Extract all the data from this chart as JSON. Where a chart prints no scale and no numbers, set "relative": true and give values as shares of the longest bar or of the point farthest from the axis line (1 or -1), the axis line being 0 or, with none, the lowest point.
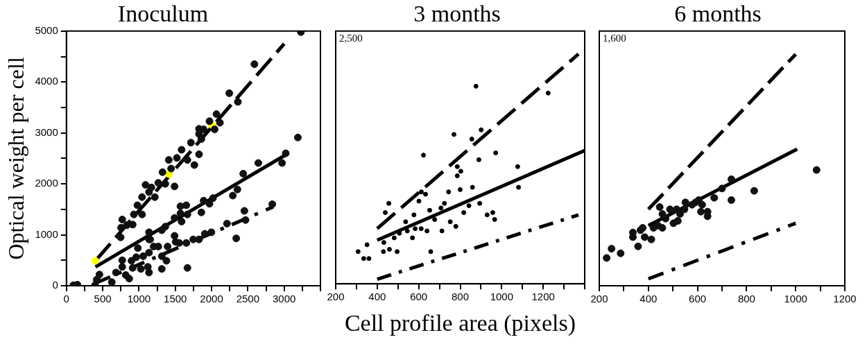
{
  "chart_data": [
    {
      "type": "scatter",
      "title": "Inoculum",
      "ylabel": "Optical weight per cell",
      "xlim": [
        0,
        3500
      ],
      "xticks": [
        0,
        {
          "value": 250,
          "label": null
        },
        500,
        {
          "value": 750,
          "label": null
        },
        1000,
        {
          "value": 1250,
          "label": null
        },
        1500,
        {
          "value": 1750,
          "label": null
        },
        2000,
        {
          "value": 2250,
          "label": null
        },
        2500,
        {
          "value": 2750,
          "label": null
        },
        3000,
        {
          "value": 3250,
          "label": null
        },
        {
          "value": 3500,
          "label": null
        }
      ],
      "ylim": [
        0,
        5000
      ],
      "yticks": [
        0,
        {
          "value": 500,
          "label": null
        },
        1000,
        {
          "value": 1500,
          "label": null
        },
        2000,
        {
          "value": 2500,
          "label": null
        },
        3000,
        {
          "value": 3500,
          "label": null
        },
        4000,
        {
          "value": 4500,
          "label": null
        },
        5000
      ],
      "marker": "circle",
      "series": [
        {
          "color": "#111111",
          "x": [
            96,
            151,
            394,
            417,
            455,
            625,
            683,
            769,
            769,
            817,
            865,
            897,
            913,
            962,
            1026,
            1058,
            1122,
            1138,
            1138,
            1154,
            1202,
            1266,
            1314,
            1314,
            1378,
            1394,
            1490,
            1506,
            1554,
            1651,
            1667,
            1747,
            1827,
            1907,
            1997,
            2212,
            2340,
            2452,
            2468,
            2837,
            984,
            1138,
            1138,
            1314,
            1362,
            1490,
            1571,
            1587,
            1651,
            1571,
            1667,
            1859,
            1891,
            1971,
            2019,
            2292,
            2356,
            2436,
            2644,
            2971,
            3022,
            3189,
            769,
            753,
            747,
            833,
            913,
            929,
            978,
            1042,
            1042,
            1090,
            1138,
            1170,
            1218,
            1266,
            1324,
            1362,
            1410,
            1442,
            1490,
            1522,
            1587,
            1667,
            1715,
            1763,
            1827,
            1827,
            1859,
            1827,
            1891,
            1971,
            2042,
            2067,
            2115,
            2244,
            2362,
            2590,
            3231
          ],
          "values": [
            10,
            20,
            10,
            120,
            220,
            70,
            260,
            500,
            370,
            210,
            140,
            490,
            350,
            560,
            330,
            580,
            370,
            260,
            650,
            910,
            770,
            770,
            580,
            330,
            490,
            770,
            980,
            860,
            840,
            840,
            350,
            910,
            910,
            1020,
            1050,
            1220,
            930,
            1470,
            1290,
            1600,
            740,
            910,
            1050,
            1090,
            1160,
            1330,
            1420,
            1260,
            1580,
            1560,
            1400,
            1440,
            1670,
            1610,
            1720,
            1770,
            1890,
            2200,
            2410,
            2410,
            2600,
            2910,
            1300,
            1140,
            950,
            1190,
            1200,
            1400,
            1580,
            1400,
            1740,
            1980,
            1840,
            1930,
            1740,
            2020,
            2230,
            2000,
            2470,
            2300,
            1950,
            2510,
            2670,
            2470,
            2810,
            2370,
            2580,
            2980,
            2880,
            3080,
            3070,
            3230,
            3070,
            3370,
            3200,
            3780,
            3610,
            4350,
            4980
          ]
        },
        {
          "color": "#ffff00",
          "x": [
            400,
            1417,
            2010
          ],
          "values": [
            490,
            2190,
            3150
          ]
        },
        {
          "type": "line",
          "marker": "none",
          "line_style": "dashed",
          "color": "#000000",
          "x": [
            400,
            3000
          ],
          "values": [
            490,
            4750
          ]
        },
        {
          "type": "line",
          "marker": "none",
          "line_style": "solid",
          "color": "#000000",
          "x": [
            400,
            3010
          ],
          "values": [
            370,
            2560
          ]
        },
        {
          "type": "line",
          "marker": "none",
          "line_style": "dotted",
          "color": "#000000",
          "x": [
            400,
            2850
          ],
          "values": [
            50,
            1550
          ]
        }
      ]
    },
    {
      "type": "scatter",
      "title": "3 months",
      "xlabel": "Cell profile area (pixels)",
      "annotations": [
        "2,500"
      ],
      "relative": true,
      "xlim": [
        200,
        1400
      ],
      "xticks": [
        200,
        {
          "value": 300,
          "label": null
        },
        400,
        {
          "value": 500,
          "label": null
        },
        600,
        {
          "value": 700,
          "label": null
        },
        800,
        {
          "value": 900,
          "label": null
        },
        1000,
        {
          "value": 1100,
          "label": null
        },
        1200,
        {
          "value": 1300,
          "label": null
        },
        {
          "value": 1400,
          "label": null
        }
      ],
      "marker": "circle",
      "series": [
        {
          "color": "#000000",
          "x": [
            308,
            335,
            360,
            351,
            432,
            430,
            439,
            456,
            459,
            482,
            496,
            507,
            537,
            545,
            570,
            577,
            583,
            601,
            612,
            613,
            623,
            633,
            640,
            653,
            658,
            677,
            707,
            712,
            724,
            744,
            752,
            770,
            779,
            786,
            786,
            800,
            803,
            817,
            842,
            856,
            859,
            876,
            890,
            894,
            901,
            930,
            957,
            966,
            971,
            1077,
            1081,
            1224
          ],
          "values": [
            0.14,
            0.11,
            0.11,
            0.17,
            0.18,
            0.14,
            0.31,
            0.35,
            0.15,
            0.2,
            0.14,
            0.22,
            0.27,
            0.23,
            0.2,
            0.3,
            0.24,
            0.36,
            0.24,
            0.4,
            0.56,
            0.39,
            0.23,
            0.32,
            0.14,
            0.28,
            0.33,
            0.23,
            0.35,
            0.4,
            0.27,
            0.65,
            0.25,
            0.51,
            0.47,
            0.41,
            0.49,
            0.31,
            0.34,
            0.63,
            0.42,
            0.86,
            0.54,
            0.35,
            0.67,
            0.3,
            0.31,
            0.28,
            0.57,
            0.51,
            0.42,
            0.83
          ]
        },
        {
          "type": "line",
          "marker": "none",
          "line_style": "dashed",
          "color": "#000000",
          "x": [
            400,
            1370
          ],
          "values": [
            0.24,
            1
          ]
        },
        {
          "type": "line",
          "marker": "none",
          "line_style": "solid",
          "color": "#000000",
          "x": [
            400,
            1400
          ],
          "values": [
            0.19,
            0.58
          ]
        },
        {
          "type": "line",
          "marker": "none",
          "line_style": "dotted",
          "color": "#000000",
          "x": [
            400,
            1370
          ],
          "values": [
            0.02,
            0.3
          ]
        }
      ]
    },
    {
      "type": "scatter",
      "title": "6 months",
      "annotations": [
        "1,600"
      ],
      "relative": true,
      "xlim": [
        200,
        1200
      ],
      "xticks": [
        200,
        {
          "value": 300,
          "label": null
        },
        400,
        {
          "value": 500,
          "label": null
        },
        600,
        {
          "value": 700,
          "label": null
        },
        800,
        {
          "value": 900,
          "label": null
        },
        1000,
        {
          "value": 1100,
          "label": null
        },
        1200
      ],
      "marker": "circle",
      "series": [
        {
          "color": "#111111",
          "x": [
            230,
            250,
            287,
            337,
            337,
            358,
            368,
            377,
            385,
            412,
            421,
            439,
            446,
            457,
            457,
            470,
            488,
            502,
            515,
            520,
            529,
            547,
            551,
            578,
            592,
            605,
            619,
            614,
            641,
            641,
            668,
            700,
            738,
            738,
            831,
            1085
          ],
          "values": [
            0.12,
            0.16,
            0.14,
            0.23,
            0.21,
            0.17,
            0.24,
            0.25,
            0.21,
            0.2,
            0.25,
            0.26,
            0.34,
            0.25,
            0.31,
            0.29,
            0.33,
            0.27,
            0.33,
            0.28,
            0.31,
            0.33,
            0.36,
            0.35,
            0.36,
            0.37,
            0.35,
            0.32,
            0.32,
            0.3,
            0.38,
            0.42,
            0.46,
            0.37,
            0.41,
            0.5
          ]
        },
        {
          "type": "line",
          "marker": "none",
          "line_style": "dashed",
          "color": "#000000",
          "x": [
            400,
            1000
          ],
          "values": [
            0.33,
            1
          ]
        },
        {
          "type": "line",
          "marker": "none",
          "line_style": "solid",
          "color": "#000000",
          "x": [
            400,
            1006
          ],
          "values": [
            0.26,
            0.59
          ]
        },
        {
          "type": "line",
          "marker": "none",
          "line_style": "dotted",
          "color": "#000000",
          "x": [
            400,
            1000
          ],
          "values": [
            0.03,
            0.27
          ]
        }
      ]
    }
  ]
}
